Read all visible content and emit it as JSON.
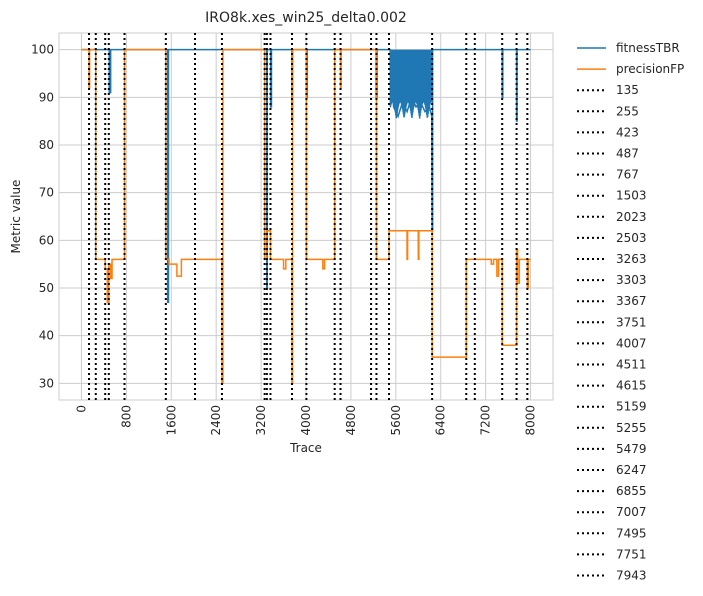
{
  "chart_data": {
    "type": "line",
    "title": "IRO8k.xes_win25_delta0.002",
    "xlabel": "Trace",
    "ylabel": "Metric value",
    "xlim": [
      -400,
      8400
    ],
    "ylim": [
      26.5,
      103.5
    ],
    "x_ticks": [
      0,
      800,
      1600,
      2400,
      3200,
      4000,
      4800,
      5600,
      6400,
      7200,
      8000
    ],
    "x_tick_labels": [
      "0",
      "800",
      "1600",
      "2400",
      "3200",
      "4000",
      "4800",
      "5600",
      "6400",
      "7200",
      "8000"
    ],
    "y_ticks": [
      30,
      40,
      50,
      60,
      70,
      80,
      90,
      100
    ],
    "y_tick_labels": [
      "30",
      "40",
      "50",
      "60",
      "70",
      "80",
      "90",
      "100"
    ],
    "grid": true,
    "legend_position": "outside-right",
    "series": [
      {
        "name": "fitnessTBR",
        "color": "#1f77b4",
        "points": [
          [
            0,
            100
          ],
          [
            495,
            100
          ],
          [
            495,
            91
          ],
          [
            520,
            91
          ],
          [
            520,
            100
          ],
          [
            1535,
            100
          ],
          [
            1535,
            47
          ],
          [
            1550,
            47
          ],
          [
            1550,
            100
          ],
          [
            3300,
            100
          ],
          [
            3300,
            50
          ],
          [
            3310,
            50
          ],
          [
            3310,
            100
          ],
          [
            3370,
            100
          ],
          [
            3370,
            88
          ],
          [
            3385,
            88
          ],
          [
            3385,
            100
          ],
          [
            3750,
            100
          ],
          [
            3750,
            85
          ],
          [
            3760,
            85
          ],
          [
            3760,
            100
          ],
          [
            4010,
            100
          ],
          [
            4010,
            90
          ],
          [
            4020,
            90
          ],
          [
            4020,
            100
          ],
          [
            5250,
            100
          ],
          [
            5250,
            90
          ],
          [
            5265,
            90
          ],
          [
            5265,
            100
          ],
          [
            5500,
            100
          ],
          [
            5560,
            88
          ],
          [
            5640,
            86
          ],
          [
            5720,
            89
          ],
          [
            5800,
            87
          ],
          [
            5880,
            90
          ],
          [
            5960,
            88
          ],
          [
            6040,
            89
          ],
          [
            6120,
            87
          ],
          [
            6200,
            88
          ],
          [
            6240,
            86
          ],
          [
            6247,
            62
          ],
          [
            6255,
            62
          ],
          [
            6255,
            100
          ],
          [
            7495,
            100
          ],
          [
            7495,
            90
          ],
          [
            7505,
            90
          ],
          [
            7505,
            100
          ],
          [
            7751,
            100
          ],
          [
            7751,
            85
          ],
          [
            7760,
            85
          ],
          [
            7760,
            100
          ],
          [
            8000,
            100
          ]
        ]
      },
      {
        "name": "precisionFP",
        "color": "#ff7f0e",
        "points": [
          [
            0,
            100
          ],
          [
            135,
            100
          ],
          [
            135,
            92
          ],
          [
            145,
            92
          ],
          [
            145,
            100
          ],
          [
            255,
            100
          ],
          [
            255,
            56
          ],
          [
            423,
            56
          ],
          [
            423,
            54
          ],
          [
            460,
            54
          ],
          [
            460,
            47
          ],
          [
            487,
            47
          ],
          [
            487,
            55
          ],
          [
            520,
            55
          ],
          [
            520,
            52
          ],
          [
            545,
            52
          ],
          [
            545,
            56
          ],
          [
            767,
            56
          ],
          [
            767,
            100
          ],
          [
            1503,
            100
          ],
          [
            1503,
            56
          ],
          [
            1560,
            56
          ],
          [
            1560,
            55
          ],
          [
            1700,
            55
          ],
          [
            1700,
            52.5
          ],
          [
            1780,
            52.5
          ],
          [
            1780,
            56
          ],
          [
            2503,
            56
          ],
          [
            2503,
            30
          ],
          [
            2520,
            30
          ],
          [
            2520,
            100
          ],
          [
            3263,
            100
          ],
          [
            3263,
            56
          ],
          [
            3303,
            56
          ],
          [
            3303,
            62
          ],
          [
            3367,
            62
          ],
          [
            3367,
            56
          ],
          [
            3600,
            56
          ],
          [
            3600,
            54
          ],
          [
            3640,
            54
          ],
          [
            3640,
            56
          ],
          [
            3751,
            56
          ],
          [
            3751,
            30
          ],
          [
            3760,
            30
          ],
          [
            3760,
            100
          ],
          [
            4007,
            100
          ],
          [
            4007,
            56
          ],
          [
            4300,
            56
          ],
          [
            4300,
            54
          ],
          [
            4330,
            54
          ],
          [
            4330,
            56
          ],
          [
            4511,
            56
          ],
          [
            4511,
            100
          ],
          [
            4615,
            100
          ],
          [
            4615,
            92
          ],
          [
            4625,
            92
          ],
          [
            4625,
            100
          ],
          [
            5159,
            100
          ],
          [
            5159,
            100
          ],
          [
            5255,
            100
          ],
          [
            5255,
            56
          ],
          [
            5479,
            56
          ],
          [
            5479,
            62
          ],
          [
            5800,
            62
          ],
          [
            5800,
            56
          ],
          [
            5810,
            56
          ],
          [
            5810,
            62
          ],
          [
            6000,
            62
          ],
          [
            6000,
            56
          ],
          [
            6010,
            56
          ],
          [
            6010,
            62
          ],
          [
            6247,
            62
          ],
          [
            6247,
            35.5
          ],
          [
            6855,
            35.5
          ],
          [
            6855,
            56
          ],
          [
            7007,
            56
          ],
          [
            7007,
            56
          ],
          [
            7300,
            56
          ],
          [
            7300,
            55
          ],
          [
            7340,
            55
          ],
          [
            7340,
            56
          ],
          [
            7400,
            56
          ],
          [
            7400,
            52.5
          ],
          [
            7430,
            52.5
          ],
          [
            7430,
            56
          ],
          [
            7495,
            56
          ],
          [
            7495,
            38
          ],
          [
            7751,
            38
          ],
          [
            7751,
            58
          ],
          [
            7770,
            58
          ],
          [
            7770,
            51
          ],
          [
            7800,
            51
          ],
          [
            7800,
            56
          ],
          [
            7943,
            56
          ],
          [
            7943,
            50
          ],
          [
            7960,
            50
          ],
          [
            7960,
            56
          ],
          [
            8000,
            56
          ]
        ]
      }
    ],
    "drift_lines": [
      135,
      255,
      423,
      487,
      767,
      1503,
      2023,
      2503,
      3263,
      3303,
      3367,
      3751,
      4007,
      4511,
      4615,
      5159,
      5255,
      5479,
      6247,
      6855,
      7007,
      7495,
      7751,
      7943
    ],
    "drift_labels": [
      "135",
      "255",
      "423",
      "487",
      "767",
      "1503",
      "2023",
      "2503",
      "3263",
      "3303",
      "3367",
      "3751",
      "4007",
      "4511",
      "4615",
      "5159",
      "5255",
      "5479",
      "6247",
      "6855",
      "7007",
      "7495",
      "7751",
      "7943"
    ],
    "drift_color": "#000000"
  }
}
